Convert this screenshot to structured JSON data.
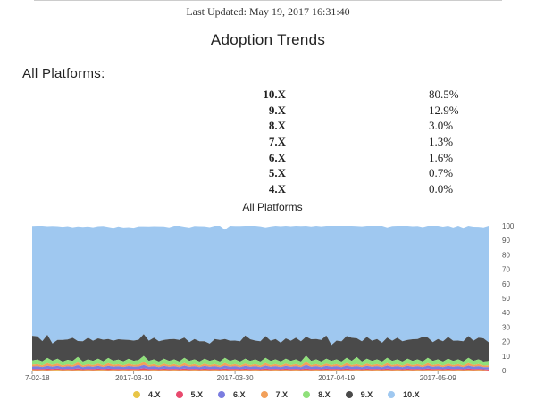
{
  "header": {
    "last_updated": "Last Updated: May 19, 2017 16:31:40"
  },
  "page_title": "Adoption Trends",
  "section_heading": "All Platforms:",
  "stats": [
    {
      "version": "10.X",
      "percent": "80.5%"
    },
    {
      "version": "9.X",
      "percent": "12.9%"
    },
    {
      "version": "8.X",
      "percent": "3.0%"
    },
    {
      "version": "7.X",
      "percent": "1.3%"
    },
    {
      "version": "6.X",
      "percent": "1.6%"
    },
    {
      "version": "5.X",
      "percent": "0.7%"
    },
    {
      "version": "4.X",
      "percent": "0.0%"
    }
  ],
  "chart_data": {
    "type": "area",
    "title": "All Platforms",
    "xlabel": "",
    "ylabel": "",
    "ylim": [
      0,
      100
    ],
    "stacked": true,
    "y_ticks": [
      "0",
      "10",
      "20",
      "30",
      "40",
      "50",
      "60",
      "70",
      "80",
      "90",
      "100"
    ],
    "x_ticks": [
      "7-02-18",
      "2017-03-10",
      "2017-03-30",
      "2017-04-19",
      "2017-05-09"
    ],
    "x_range": [
      "2017-02-18",
      "2017-05-19"
    ],
    "grid": false,
    "legend_position": "bottom",
    "series": [
      {
        "name": "4.X",
        "color": "#e8c547",
        "values": [
          0.4,
          0.3,
          0.4,
          0.3,
          0.4,
          0.5,
          0.3,
          0.4,
          0.3,
          0.4,
          0.3,
          0.4,
          0.3,
          0.4,
          0.4,
          0.3,
          0.4,
          0.3,
          0.4,
          0.3,
          0.4,
          0.3,
          0.4,
          0.3,
          0.4,
          0.3,
          0.4,
          0.3,
          0.4,
          0.3,
          0.4,
          0.3,
          0.4,
          0.3,
          0.4,
          0.3,
          0.4,
          0.3,
          0.4,
          0.3,
          0.4,
          0.3,
          0.4,
          0.3,
          0.4,
          0.3,
          0.4,
          0.3,
          0.4,
          0.3,
          0.4,
          0.3,
          0.4,
          0.3,
          0.4,
          0.3,
          0.4,
          0.3,
          0.4,
          0.3,
          0.4,
          0.3,
          0.4,
          0.3,
          0.4,
          0.3,
          0.4,
          0.3,
          0.4,
          0.3,
          0.4,
          0.3,
          0.4,
          0.3,
          0.4,
          0.3,
          0.4,
          0.3,
          0.4,
          0.3,
          0.4,
          0.3,
          0.4,
          0.3,
          0.4,
          0.3,
          0.4,
          0.3,
          0.4,
          0.3,
          0.0
        ]
      },
      {
        "name": "5.X",
        "color": "#e84a6e",
        "values": [
          0.7,
          0.8,
          0.6,
          1.0,
          0.7,
          0.9,
          0.6,
          0.8,
          0.7,
          1.1,
          0.6,
          0.8,
          0.7,
          0.9,
          0.6,
          1.0,
          0.7,
          0.8,
          0.6,
          0.9,
          0.7,
          0.8,
          1.2,
          0.7,
          0.8,
          0.6,
          0.9,
          0.7,
          0.8,
          0.6,
          1.0,
          0.7,
          0.8,
          0.6,
          0.9,
          0.7,
          0.8,
          0.6,
          1.0,
          0.7,
          0.8,
          0.6,
          0.9,
          0.7,
          0.8,
          0.6,
          1.0,
          0.7,
          0.8,
          0.6,
          0.9,
          0.7,
          0.8,
          0.6,
          1.0,
          0.7,
          0.8,
          0.6,
          0.9,
          0.7,
          0.8,
          0.6,
          1.0,
          0.7,
          0.8,
          0.6,
          0.9,
          0.7,
          0.8,
          0.6,
          1.0,
          0.7,
          0.8,
          0.6,
          0.9,
          0.7,
          0.8,
          0.6,
          1.0,
          0.7,
          0.8,
          0.6,
          0.9,
          0.7,
          0.8,
          0.6,
          1.0,
          0.7,
          0.8,
          0.6,
          0.7
        ]
      },
      {
        "name": "6.X",
        "color": "#7b7de0",
        "values": [
          1.6,
          1.8,
          1.4,
          2.0,
          1.5,
          1.9,
          1.4,
          1.7,
          1.5,
          2.2,
          1.4,
          1.8,
          1.5,
          1.9,
          1.4,
          2.0,
          1.5,
          1.8,
          1.4,
          1.9,
          1.5,
          1.7,
          2.3,
          1.5,
          1.8,
          1.4,
          1.9,
          1.5,
          1.8,
          1.4,
          2.0,
          1.5,
          1.8,
          1.4,
          1.9,
          1.5,
          1.8,
          1.4,
          2.0,
          1.5,
          1.8,
          1.4,
          1.9,
          1.5,
          1.8,
          1.4,
          2.0,
          1.5,
          1.8,
          1.4,
          1.9,
          1.5,
          1.8,
          1.4,
          2.4,
          1.5,
          1.8,
          1.4,
          1.9,
          1.5,
          1.8,
          1.4,
          2.0,
          1.5,
          1.8,
          1.4,
          1.9,
          1.5,
          1.8,
          1.4,
          2.0,
          1.5,
          1.8,
          1.4,
          1.9,
          1.5,
          1.8,
          1.4,
          2.0,
          1.5,
          1.8,
          1.4,
          1.9,
          1.5,
          1.8,
          1.4,
          2.0,
          1.5,
          1.8,
          1.4,
          1.6
        ]
      },
      {
        "name": "7.X",
        "color": "#f2a05a",
        "values": [
          1.3,
          1.5,
          1.1,
          1.8,
          1.2,
          1.6,
          1.1,
          1.4,
          1.2,
          1.9,
          1.1,
          1.5,
          1.2,
          1.6,
          1.1,
          1.8,
          1.2,
          1.5,
          1.1,
          1.6,
          1.2,
          1.4,
          2.0,
          1.2,
          1.5,
          1.1,
          1.6,
          1.2,
          1.5,
          1.1,
          1.8,
          1.2,
          1.5,
          1.1,
          1.6,
          1.2,
          1.5,
          1.1,
          1.8,
          1.2,
          1.5,
          1.1,
          1.6,
          1.2,
          1.5,
          1.1,
          1.8,
          1.2,
          1.5,
          1.1,
          1.6,
          1.2,
          1.5,
          1.1,
          2.1,
          1.2,
          1.5,
          1.1,
          1.6,
          1.2,
          1.5,
          1.1,
          1.8,
          1.2,
          1.5,
          1.1,
          1.6,
          1.2,
          1.5,
          1.1,
          1.8,
          1.2,
          1.5,
          1.1,
          1.6,
          1.2,
          1.5,
          1.1,
          1.8,
          1.2,
          1.5,
          1.1,
          1.6,
          1.2,
          1.5,
          1.1,
          1.8,
          1.2,
          1.5,
          1.1,
          1.3
        ]
      },
      {
        "name": "8.X",
        "color": "#8fe07a",
        "values": [
          3.0,
          3.2,
          2.8,
          3.6,
          2.9,
          3.3,
          2.7,
          3.1,
          2.9,
          3.8,
          2.8,
          3.2,
          2.9,
          3.4,
          2.8,
          3.6,
          2.9,
          3.2,
          2.8,
          3.4,
          2.9,
          3.1,
          4.2,
          2.9,
          3.2,
          2.8,
          3.4,
          2.9,
          3.2,
          2.8,
          3.6,
          2.9,
          3.2,
          2.8,
          3.4,
          2.9,
          3.2,
          2.8,
          3.6,
          2.9,
          3.2,
          2.8,
          3.4,
          2.9,
          3.2,
          2.8,
          3.6,
          2.9,
          3.2,
          2.8,
          3.4,
          2.9,
          3.2,
          2.8,
          4.5,
          2.9,
          3.2,
          2.8,
          3.4,
          2.9,
          3.2,
          2.8,
          3.6,
          2.9,
          4.8,
          2.8,
          3.4,
          2.9,
          3.2,
          2.8,
          3.6,
          2.9,
          3.2,
          2.8,
          3.4,
          2.9,
          3.2,
          2.8,
          3.6,
          2.9,
          3.2,
          2.8,
          3.4,
          2.9,
          3.2,
          2.8,
          3.6,
          2.9,
          3.2,
          2.8,
          3.0
        ]
      },
      {
        "name": "9.X",
        "color": "#4a4a4a",
        "values": [
          17,
          16,
          14,
          16,
          12,
          13,
          15,
          14,
          16,
          11,
          14,
          15,
          14,
          14,
          15,
          13,
          14,
          14,
          15,
          13,
          14,
          14,
          15,
          14,
          15,
          14,
          13,
          15,
          14,
          15,
          14,
          13,
          14,
          14,
          12,
          12,
          14,
          15,
          13,
          14,
          13,
          14,
          16,
          15,
          13,
          14,
          15,
          14,
          14,
          13,
          14,
          14,
          15,
          14,
          13,
          15,
          14,
          15,
          16,
          11,
          13,
          14,
          15,
          16,
          13,
          14,
          15,
          14,
          14,
          13,
          14,
          14,
          15,
          14,
          13,
          15,
          14,
          17,
          14,
          13,
          14,
          14,
          15,
          14,
          13,
          14,
          15,
          14,
          15,
          16,
          12.9
        ]
      },
      {
        "name": "10.X",
        "color": "#9fc8f0",
        "values": [
          75.9,
          76.5,
          79.7,
          75.0,
          81.1,
          78.5,
          78.2,
          78.3,
          76.4,
          79.1,
          79.0,
          76.8,
          78.4,
          77.5,
          78.6,
          77.5,
          77.9,
          77.9,
          77.5,
          78.0,
          78.0,
          78.3,
          74.5,
          78.9,
          77.0,
          79.4,
          78.3,
          77.3,
          78.3,
          79.3,
          76.6,
          79.2,
          78.2,
          79.5,
          79.4,
          80.5,
          78.8,
          79.6,
          75.6,
          79.5,
          79.2,
          79.7,
          76.1,
          78.5,
          79.3,
          79.4,
          75.1,
          78.9,
          78.9,
          80.5,
          78.3,
          79.1,
          77.6,
          79.6,
          77.2,
          77.9,
          78.3,
          78.4,
          76.5,
          82.7,
          79.3,
          80.1,
          77.3,
          77.6,
          77.6,
          79.4,
          77.9,
          79.4,
          78.6,
          81.0,
          76.1,
          79.3,
          79.0,
          81.1,
          79.2,
          78.1,
          78.1,
          75.9,
          77.7,
          82.2,
          78.7,
          79.2,
          77.1,
          78.2,
          79.4,
          78.4,
          76.9,
          78.8,
          76.6,
          76.7,
          80.5
        ]
      }
    ]
  }
}
